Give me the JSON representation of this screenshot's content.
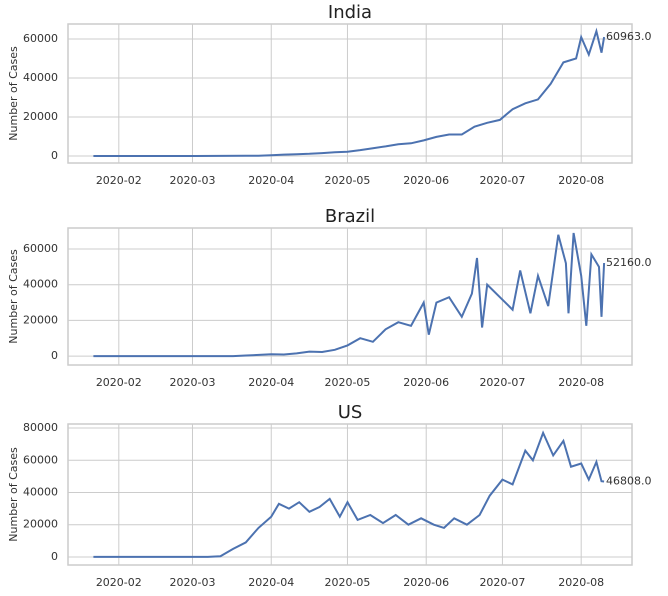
{
  "chart_data": [
    {
      "type": "line",
      "title": "India",
      "ylabel": "Number of Cases",
      "color": "#4c72b0",
      "grid": true,
      "xlim": [
        "2020-01-12",
        "2020-08-21"
      ],
      "xticks": [
        {
          "value": "2020-02-01",
          "label": "2020-02"
        },
        {
          "value": "2020-03-01",
          "label": "2020-03"
        },
        {
          "value": "2020-04-01",
          "label": "2020-04"
        },
        {
          "value": "2020-05-01",
          "label": "2020-05"
        },
        {
          "value": "2020-06-01",
          "label": "2020-06"
        },
        {
          "value": "2020-07-01",
          "label": "2020-07"
        },
        {
          "value": "2020-08-01",
          "label": "2020-08"
        }
      ],
      "ylim": [
        -3600,
        67700
      ],
      "yticks": [
        0,
        20000,
        40000,
        60000
      ],
      "x": [
        "2020-01-22",
        "2020-02-11",
        "2020-03-02",
        "2020-03-22",
        "2020-03-27",
        "2020-04-01",
        "2020-04-06",
        "2020-04-11",
        "2020-04-16",
        "2020-04-21",
        "2020-04-26",
        "2020-05-01",
        "2020-05-06",
        "2020-05-11",
        "2020-05-16",
        "2020-05-21",
        "2020-05-26",
        "2020-05-31",
        "2020-06-05",
        "2020-06-10",
        "2020-06-15",
        "2020-06-20",
        "2020-06-25",
        "2020-06-30",
        "2020-07-05",
        "2020-07-10",
        "2020-07-15",
        "2020-07-20",
        "2020-07-25",
        "2020-07-30",
        "2020-08-01",
        "2020-08-04",
        "2020-08-07",
        "2020-08-09",
        "2020-08-10"
      ],
      "values": [
        0,
        0,
        0,
        100,
        150,
        400,
        700,
        900,
        1100,
        1500,
        1900,
        2200,
        3000,
        4000,
        4900,
        6000,
        6500,
        8000,
        9800,
        11000,
        11000,
        15000,
        17000,
        18500,
        24000,
        27000,
        29000,
        37000,
        48000,
        50000,
        61000,
        52000,
        64000,
        53000,
        60963
      ],
      "annotation": "60963.0"
    },
    {
      "type": "line",
      "title": "Brazil",
      "ylabel": "Number of Cases",
      "color": "#4c72b0",
      "grid": true,
      "xlim": [
        "2020-01-12",
        "2020-08-21"
      ],
      "xticks": [
        {
          "value": "2020-02-01",
          "label": "2020-02"
        },
        {
          "value": "2020-03-01",
          "label": "2020-03"
        },
        {
          "value": "2020-04-01",
          "label": "2020-04"
        },
        {
          "value": "2020-05-01",
          "label": "2020-05"
        },
        {
          "value": "2020-06-01",
          "label": "2020-06"
        },
        {
          "value": "2020-07-01",
          "label": "2020-07"
        },
        {
          "value": "2020-08-01",
          "label": "2020-08"
        }
      ],
      "ylim": [
        -5000,
        71800
      ],
      "yticks": [
        0,
        20000,
        40000,
        60000
      ],
      "x": [
        "2020-01-22",
        "2020-02-11",
        "2020-03-02",
        "2020-03-17",
        "2020-03-22",
        "2020-04-01",
        "2020-04-06",
        "2020-04-11",
        "2020-04-16",
        "2020-04-21",
        "2020-04-26",
        "2020-05-01",
        "2020-05-06",
        "2020-05-11",
        "2020-05-16",
        "2020-05-21",
        "2020-05-26",
        "2020-05-31",
        "2020-06-02",
        "2020-06-05",
        "2020-06-10",
        "2020-06-15",
        "2020-06-19",
        "2020-06-21",
        "2020-06-23",
        "2020-06-25",
        "2020-06-30",
        "2020-07-05",
        "2020-07-08",
        "2020-07-12",
        "2020-07-15",
        "2020-07-19",
        "2020-07-23",
        "2020-07-26",
        "2020-07-27",
        "2020-07-29",
        "2020-08-01",
        "2020-08-03",
        "2020-08-05",
        "2020-08-08",
        "2020-08-09",
        "2020-08-10"
      ],
      "values": [
        0,
        0,
        0,
        0,
        300,
        1000,
        900,
        1500,
        2500,
        2300,
        3500,
        6000,
        10000,
        8000,
        15000,
        19000,
        17000,
        30000,
        12000,
        30000,
        33000,
        22000,
        35000,
        55000,
        16000,
        40000,
        33000,
        26000,
        48000,
        24000,
        45000,
        28000,
        68000,
        52000,
        24000,
        69000,
        45000,
        17000,
        57000,
        50000,
        22000,
        52160
      ],
      "annotation": "52160.0"
    },
    {
      "type": "line",
      "title": "US",
      "ylabel": "Number of Cases",
      "color": "#4c72b0",
      "grid": true,
      "xlim": [
        "2020-01-12",
        "2020-08-21"
      ],
      "xticks": [
        {
          "value": "2020-02-01",
          "label": "2020-02"
        },
        {
          "value": "2020-03-01",
          "label": "2020-03"
        },
        {
          "value": "2020-04-01",
          "label": "2020-04"
        },
        {
          "value": "2020-05-01",
          "label": "2020-05"
        },
        {
          "value": "2020-06-01",
          "label": "2020-06"
        },
        {
          "value": "2020-07-01",
          "label": "2020-07"
        },
        {
          "value": "2020-08-01",
          "label": "2020-08"
        }
      ],
      "ylim": [
        -5000,
        82500
      ],
      "yticks": [
        0,
        20000,
        40000,
        60000,
        80000
      ],
      "x": [
        "2020-01-22",
        "2020-02-11",
        "2020-03-07",
        "2020-03-12",
        "2020-03-17",
        "2020-03-22",
        "2020-03-27",
        "2020-04-01",
        "2020-04-04",
        "2020-04-08",
        "2020-04-12",
        "2020-04-16",
        "2020-04-20",
        "2020-04-24",
        "2020-04-28",
        "2020-05-01",
        "2020-05-05",
        "2020-05-10",
        "2020-05-15",
        "2020-05-20",
        "2020-05-25",
        "2020-05-30",
        "2020-06-04",
        "2020-06-08",
        "2020-06-12",
        "2020-06-17",
        "2020-06-22",
        "2020-06-26",
        "2020-07-01",
        "2020-07-05",
        "2020-07-10",
        "2020-07-13",
        "2020-07-17",
        "2020-07-21",
        "2020-07-25",
        "2020-07-28",
        "2020-08-01",
        "2020-08-04",
        "2020-08-07",
        "2020-08-09",
        "2020-08-10"
      ],
      "values": [
        0,
        0,
        0,
        400,
        5000,
        9000,
        18000,
        25000,
        33000,
        30000,
        34000,
        28000,
        31000,
        36000,
        25000,
        34000,
        23000,
        26000,
        21000,
        26000,
        20000,
        24000,
        20000,
        18000,
        24000,
        20000,
        26000,
        38000,
        48000,
        45000,
        66000,
        60000,
        77000,
        63000,
        72000,
        56000,
        58000,
        48000,
        59000,
        47000,
        46808
      ],
      "annotation": "46808.0"
    }
  ]
}
